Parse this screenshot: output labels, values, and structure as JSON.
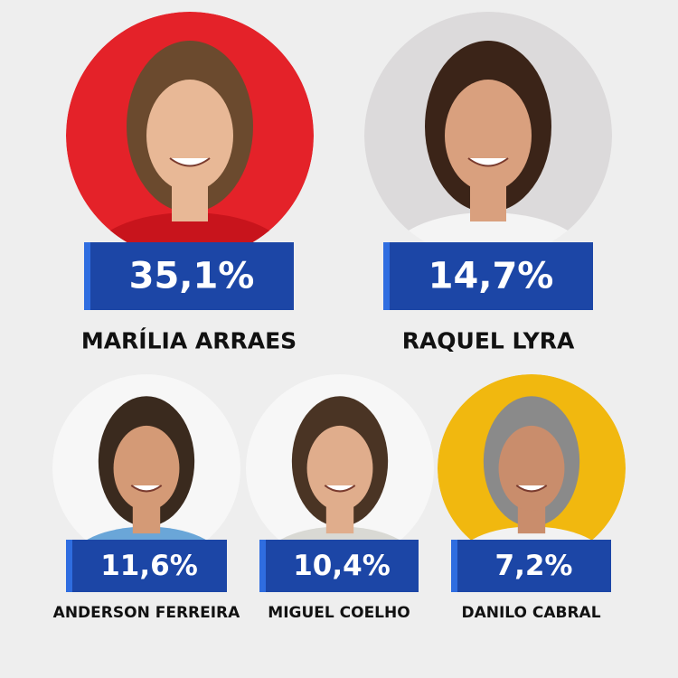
{
  "candidates": [
    {
      "name": "MARÍLIA ARRAES",
      "percent": "35,1%"
    },
    {
      "name": "RAQUEL LYRA",
      "percent": "14,7%"
    },
    {
      "name": "ANDERSON FERREIRA",
      "percent": "11,6%"
    },
    {
      "name": "MIGUEL COELHO",
      "percent": "10,4%"
    },
    {
      "name": "DANILO CABRAL",
      "percent": "7,2%"
    }
  ]
}
